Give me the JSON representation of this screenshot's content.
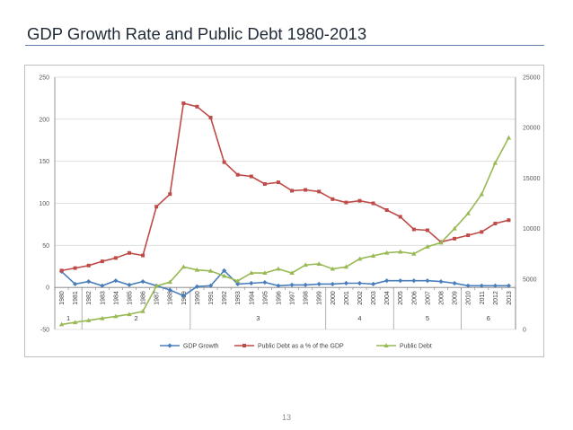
{
  "slide": {
    "title": "GDP Growth Rate and Public Debt  1980-2013",
    "page_number": "13"
  },
  "colors": {
    "gdp_growth": "#4a7ebb",
    "public_debt_pct": "#be4b48",
    "public_debt": "#98b954",
    "gridline": "#d9d9d9",
    "axis": "#7f7f7f"
  },
  "chart_data": {
    "type": "line",
    "title": "",
    "xlabel": "",
    "ylabel": "",
    "grid": "horizontal gridlines on",
    "legend_position": "bottom",
    "categories": [
      "1980",
      "1981",
      "1982",
      "1983",
      "1984",
      "1985",
      "1986",
      "1987",
      "1988",
      "1989",
      "1990",
      "1991",
      "1992",
      "1993",
      "1994",
      "1995",
      "1996",
      "1997",
      "1998",
      "1999",
      "2000",
      "2001",
      "2002",
      "2003",
      "2004",
      "2005",
      "2006",
      "2007",
      "2008",
      "2009",
      "2010",
      "2011",
      "2012",
      "2013"
    ],
    "period_groups": [
      {
        "label": "1",
        "from": "1980",
        "to": "1981"
      },
      {
        "label": "2",
        "from": "1982",
        "to": "1989"
      },
      {
        "label": "3",
        "from": "1990",
        "to": "1999"
      },
      {
        "label": "4",
        "from": "2000",
        "to": "2004"
      },
      {
        "label": "5",
        "from": "2005",
        "to": "2009"
      },
      {
        "label": "6",
        "from": "2010",
        "to": "2013"
      }
    ],
    "y_left": {
      "ylim": [
        -50,
        250
      ],
      "ticks": [
        "-50",
        "0",
        "50",
        "100",
        "150",
        "200",
        "250"
      ]
    },
    "y_right": {
      "ylim": [
        0,
        25000
      ],
      "ticks": [
        "0",
        "5000",
        "10000",
        "15000",
        "20000",
        "25000"
      ]
    },
    "series": [
      {
        "name": "GDP Growth",
        "axis": "left",
        "marker": "diamond",
        "values": [
          19,
          4,
          7,
          2,
          8,
          3,
          7,
          2,
          -3,
          -10,
          1,
          2,
          20,
          4,
          5,
          6,
          2,
          3,
          3,
          4,
          4,
          5,
          5,
          4,
          8,
          8,
          8,
          8,
          7,
          5,
          2,
          2,
          2,
          2
        ]
      },
      {
        "name": "Public Debt as a % of the GDP",
        "axis": "left",
        "marker": "square",
        "values": [
          20,
          23,
          26,
          31,
          35,
          41,
          38,
          96,
          111,
          219,
          215,
          202,
          149,
          134,
          132,
          123,
          125,
          115,
          116,
          114,
          105,
          101,
          103,
          100,
          92,
          84,
          69,
          68,
          54,
          58,
          62,
          66,
          76,
          80
        ]
      },
      {
        "name": "Public Debt",
        "axis": "right",
        "marker": "triangle",
        "values": [
          500,
          700,
          900,
          1100,
          1300,
          1500,
          1800,
          4300,
          4700,
          6200,
          5900,
          5800,
          5300,
          4800,
          5600,
          5600,
          6000,
          5600,
          6400,
          6500,
          6000,
          6200,
          7000,
          7300,
          7600,
          7700,
          7500,
          8200,
          8600,
          10000,
          11500,
          13400,
          16500,
          19000
        ]
      }
    ]
  }
}
